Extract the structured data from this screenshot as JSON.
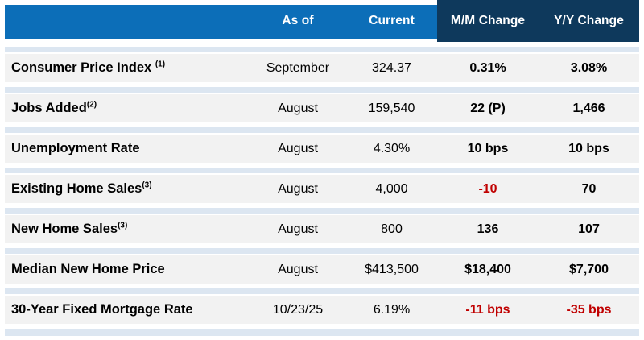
{
  "table": {
    "column_headers": [
      "As of",
      "Current",
      "M/M Change",
      "Y/Y Change"
    ],
    "rows": [
      {
        "label": "Consumer Price Index ",
        "sup": "(1)",
        "as_of": "September",
        "current": "324.37",
        "mm_change": "0.31%",
        "yy_change": "3.08%"
      },
      {
        "label": "Jobs Added",
        "sup": "(2)",
        "as_of": "August",
        "current": "159,540",
        "mm_change": "22 (P)",
        "yy_change": "1,466"
      },
      {
        "label": "Unemployment Rate",
        "sup": "",
        "as_of": "August",
        "current": "4.30%",
        "mm_change": "10 bps",
        "yy_change": "10 bps"
      },
      {
        "label": "Existing Home Sales",
        "sup": "(3)",
        "as_of": "August",
        "current": "4,000",
        "mm_change": "-10",
        "yy_change": "70"
      },
      {
        "label": "New Home Sales",
        "sup": "(3)",
        "as_of": "August",
        "current": "800",
        "mm_change": "136",
        "yy_change": "107"
      },
      {
        "label": "Median New Home Price",
        "sup": "",
        "as_of": "August",
        "current": "$413,500",
        "mm_change": "$18,400",
        "yy_change": "$7,700"
      },
      {
        "label": "30-Year Fixed Mortgage Rate",
        "sup": "",
        "as_of": "10/23/25",
        "current": "6.19%",
        "mm_change": "-11 bps",
        "yy_change": "-35 bps"
      }
    ]
  },
  "colors": {
    "header_blue": "#0C6EB8",
    "header_navy": "#0E395C",
    "row_band_gray": "#F2F2F2",
    "separator_light_blue": "#DCE6F1",
    "negative_red": "#C00000",
    "text_black": "#000000"
  }
}
